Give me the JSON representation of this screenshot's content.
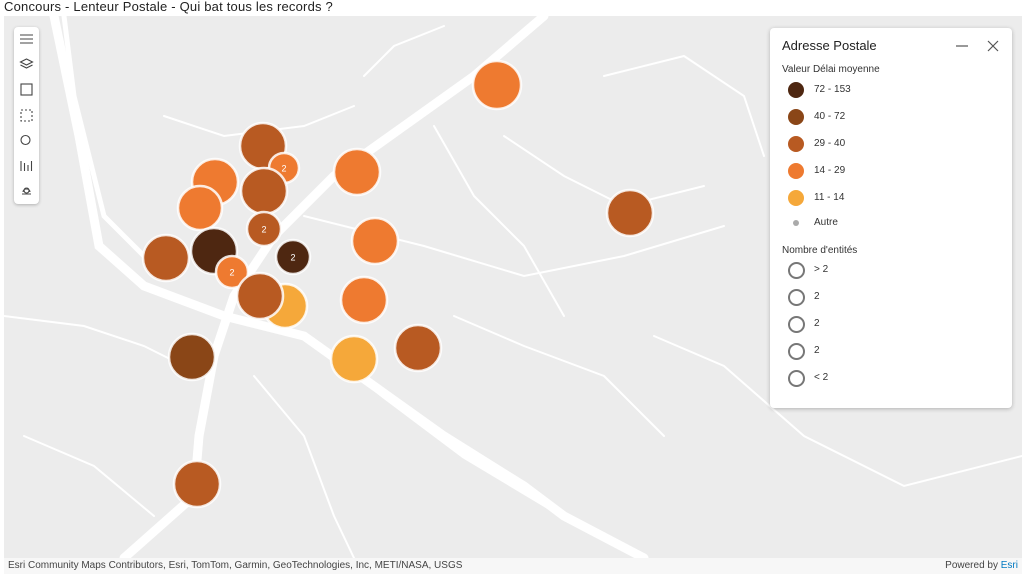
{
  "header": {
    "title": "Concours - Lenteur Postale - Qui bat tous les records ?"
  },
  "legend": {
    "title": "Adresse Postale",
    "color_heading": "Valeur Délai moyenne",
    "classes": [
      {
        "label": "72 - 153",
        "color": "#4e2711"
      },
      {
        "label": "40 - 72",
        "color": "#8a4617"
      },
      {
        "label": "29 - 40",
        "color": "#b85a22"
      },
      {
        "label": "14 - 29",
        "color": "#ee7a30"
      },
      {
        "label": "11 - 14",
        "color": "#f5a83a"
      }
    ],
    "other": "Autre",
    "size_heading": "Nombre d'entités",
    "sizes": [
      "> 2",
      "2",
      "2",
      "2",
      "< 2"
    ]
  },
  "map": {
    "cluster_labels": [
      "2",
      "2",
      "2",
      "2"
    ]
  },
  "footer": {
    "attribution": "Esri Community Maps Contributors, Esri, TomTom, Garmin, GeoTechnologies, Inc, METI/NASA, USGS",
    "powered": "Powered by",
    "esri": "Esri"
  }
}
